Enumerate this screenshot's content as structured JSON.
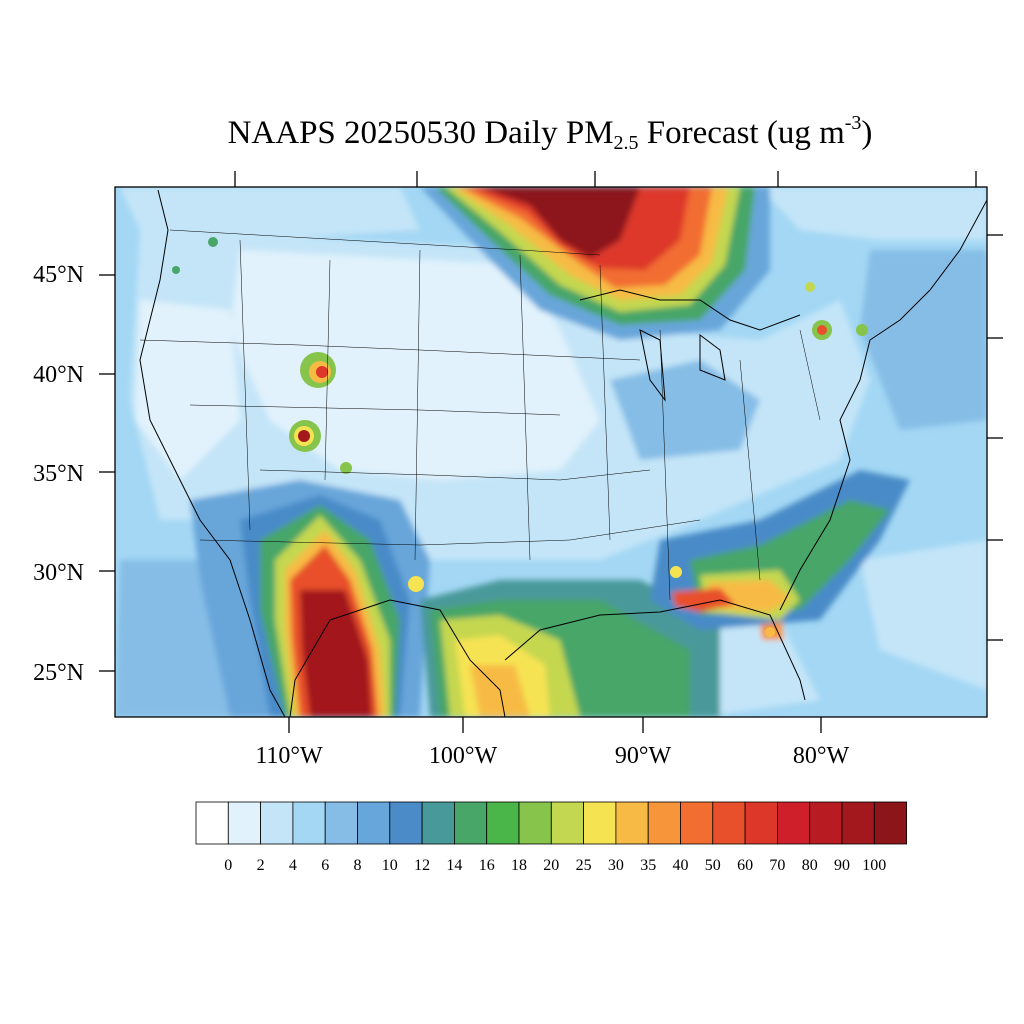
{
  "title": {
    "prefix": "NAAPS 20250530 Daily PM",
    "subscript": "2.5",
    "middle": " Forecast (ug m",
    "superscript": "-3",
    "suffix": ")"
  },
  "map": {
    "lat_labels": [
      "45°N",
      "40°N",
      "35°N",
      "30°N",
      "25°N"
    ],
    "lon_labels": [
      "110°W",
      "100°W",
      "90°W",
      "80°W"
    ]
  },
  "colorbar": {
    "levels": [
      "0",
      "2",
      "4",
      "6",
      "8",
      "10",
      "12",
      "14",
      "16",
      "18",
      "20",
      "25",
      "30",
      "35",
      "40",
      "50",
      "60",
      "70",
      "80",
      "90",
      "100"
    ],
    "colors": [
      "#ffffff",
      "#e1f2fc",
      "#c4e5f8",
      "#a3d7f4",
      "#85bde6",
      "#67a6da",
      "#4a8bc8",
      "#48999a",
      "#47a668",
      "#4ab548",
      "#86c44b",
      "#c4d750",
      "#f6e352",
      "#f7bb45",
      "#f6953a",
      "#f26d30",
      "#e8502c",
      "#dd3729",
      "#cf1f2b",
      "#b91b23",
      "#a2181d",
      "#8c151a"
    ]
  }
}
